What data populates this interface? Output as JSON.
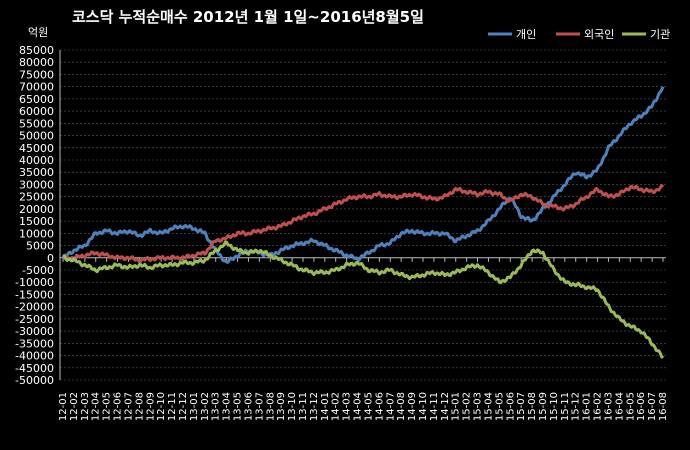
{
  "chart_data": {
    "type": "line",
    "title": "코스닥  누적순매수 2012년 1월 1일~2016년8월5일",
    "unit_label": "억원",
    "ylim": [
      -50000,
      85000
    ],
    "ytick_step": 5000,
    "grid": "horizontal dashed",
    "legend_position": "top-right",
    "x": [
      "12-01",
      "12-02",
      "12-03",
      "12-04",
      "12-05",
      "12-06",
      "12-07",
      "12-08",
      "12-09",
      "12-10",
      "12-11",
      "12-12",
      "13-01",
      "13-02",
      "13-03",
      "13-04",
      "13-05",
      "13-06",
      "13-07",
      "13-08",
      "13-09",
      "13-10",
      "13-11",
      "13-12",
      "14-01",
      "14-02",
      "14-03",
      "14-04",
      "14-05",
      "14-06",
      "14-07",
      "14-08",
      "14-09",
      "14-10",
      "14-11",
      "14-12",
      "15-01",
      "15-02",
      "15-03",
      "15-04",
      "15-05",
      "15-06",
      "15-07",
      "15-08",
      "15-09",
      "15-10",
      "15-11",
      "15-12",
      "16-01",
      "16-02",
      "16-03",
      "16-04",
      "16-05",
      "16-06",
      "16-07",
      "16-08"
    ],
    "series": [
      {
        "name": "개인",
        "color": "#4f81bd",
        "values": [
          0,
          3000,
          5000,
          10000,
          11000,
          10000,
          11000,
          9000,
          11000,
          10000,
          12000,
          13000,
          12000,
          10000,
          3000,
          -2000,
          1000,
          3000,
          2000,
          1000,
          3000,
          5000,
          6000,
          7000,
          5000,
          3000,
          1000,
          -500,
          2000,
          5000,
          6000,
          10000,
          11000,
          10000,
          10000,
          10000,
          7000,
          9000,
          11000,
          15000,
          20000,
          25000,
          17000,
          15000,
          20000,
          25000,
          30000,
          35000,
          33000,
          36000,
          45000,
          50000,
          55000,
          58000,
          62000,
          70000
        ]
      },
      {
        "name": "외국인",
        "color": "#c0504d",
        "values": [
          0,
          0,
          1000,
          2000,
          1000,
          0,
          0,
          -1000,
          -500,
          0,
          0,
          0,
          1000,
          2000,
          7000,
          8000,
          10000,
          10000,
          11000,
          12000,
          13000,
          15000,
          17000,
          18000,
          20000,
          22000,
          24000,
          25000,
          25000,
          26000,
          25000,
          25000,
          26000,
          25000,
          24000,
          25000,
          28000,
          27000,
          26000,
          27000,
          26000,
          23000,
          26000,
          25000,
          22000,
          21000,
          20000,
          22000,
          25000,
          28000,
          25000,
          26000,
          29000,
          28000,
          27000,
          29000
        ]
      },
      {
        "name": "기관",
        "color": "#9bbb59",
        "values": [
          0,
          -1000,
          -3000,
          -5000,
          -4000,
          -3000,
          -4000,
          -3000,
          -4000,
          -3000,
          -3000,
          -2000,
          -2000,
          -1000,
          3000,
          6000,
          3000,
          2000,
          3000,
          1000,
          -1000,
          -3000,
          -5000,
          -6000,
          -6000,
          -5000,
          -3000,
          -2000,
          -5000,
          -6000,
          -5000,
          -7000,
          -8000,
          -7000,
          -6000,
          -7000,
          -6000,
          -4000,
          -3000,
          -6000,
          -10000,
          -8000,
          -3000,
          3000,
          2000,
          -5000,
          -10000,
          -11000,
          -12000,
          -13000,
          -20000,
          -25000,
          -28000,
          -30000,
          -35000,
          -41000
        ]
      }
    ]
  }
}
